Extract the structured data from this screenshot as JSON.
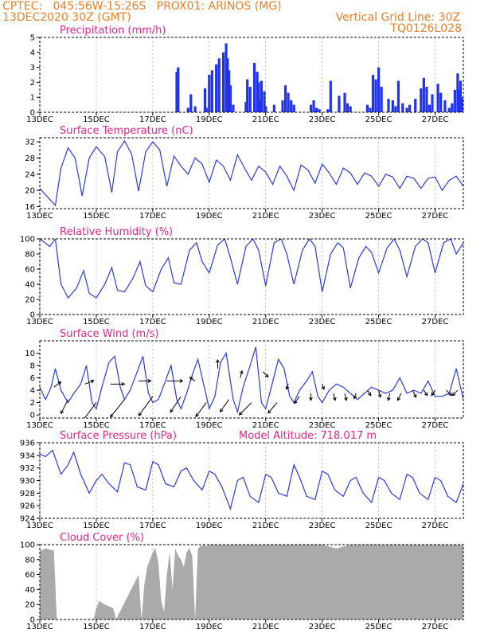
{
  "header": {
    "source": "CPTEC:",
    "location": "045:56W-15:26S",
    "station": "PROX01: ARINOS (MG)",
    "run": "13DEC2020 30Z (GMT)",
    "grid_note": "Vertical Grid Line: 30Z",
    "model_code": "TQ0126L028"
  },
  "x_axis": {
    "labels": [
      "13DEC",
      "15DEC",
      "17DEC",
      "19DEC",
      "21DEC",
      "23DEC",
      "25DEC",
      "27DEC"
    ],
    "start_day": 13,
    "end_day": 28.0
  },
  "colors": {
    "line": "#2a3cd6",
    "bar": "#2233ee",
    "cloud": "#aaaaaa",
    "title": "#e0288a",
    "header": "#e8812a"
  },
  "chart_data": [
    {
      "type": "bar",
      "title": "Precipitation (mm/h)",
      "ylim": [
        0,
        5
      ],
      "yticks": [
        0,
        1,
        2,
        3,
        4,
        5
      ],
      "x_units": "day of month (Dec 2020)",
      "x": [
        17.85,
        17.9,
        18.25,
        18.35,
        18.5,
        18.85,
        18.9,
        19.0,
        19.1,
        19.25,
        19.35,
        19.5,
        19.6,
        19.65,
        19.7,
        19.75,
        19.85,
        20.3,
        20.35,
        20.45,
        20.6,
        20.7,
        20.75,
        20.8,
        20.85,
        20.95,
        21.0,
        21.3,
        21.6,
        21.7,
        21.8,
        21.9,
        22.0,
        22.6,
        22.7,
        22.8,
        22.9,
        23.2,
        23.3,
        23.6,
        23.8,
        23.9,
        24.0,
        24.6,
        24.7,
        24.8,
        24.9,
        25.0,
        25.1,
        25.35,
        25.5,
        25.6,
        25.7,
        25.85,
        26.0,
        26.1,
        26.3,
        26.5,
        26.6,
        26.7,
        26.8,
        26.9,
        27.1,
        27.2,
        27.35,
        27.5,
        27.6,
        27.7,
        27.8,
        27.85,
        27.9,
        27.95
      ],
      "values": [
        2.7,
        3.0,
        0.3,
        1.2,
        0.4,
        1.6,
        0.3,
        2.5,
        2.8,
        3.2,
        3.6,
        4.0,
        4.6,
        3.6,
        2.8,
        1.8,
        0.5,
        0.7,
        2.2,
        1.7,
        3.3,
        2.7,
        2.0,
        0.8,
        2.1,
        1.4,
        0.4,
        0.5,
        0.8,
        1.8,
        1.3,
        0.8,
        0.5,
        0.5,
        0.8,
        0.3,
        0.2,
        0.2,
        2.1,
        1.1,
        1.3,
        0.6,
        0.4,
        0.5,
        0.3,
        2.5,
        2.2,
        3.0,
        1.7,
        0.9,
        0.8,
        0.4,
        2.1,
        0.6,
        0.3,
        0.5,
        0.9,
        1.6,
        2.3,
        1.7,
        0.5,
        1.2,
        1.9,
        1.3,
        0.8,
        0.3,
        0.6,
        1.5,
        2.6,
        1.5,
        2.1,
        1.0
      ]
    },
    {
      "type": "line",
      "title": "Surface Temperature (nC)",
      "ylim": [
        15.5,
        33
      ],
      "yticks": [
        16,
        20,
        24,
        28,
        32
      ],
      "x": [
        13.0,
        13.3,
        13.55,
        13.75,
        14.0,
        14.25,
        14.5,
        14.75,
        15.0,
        15.3,
        15.55,
        15.75,
        16.0,
        16.25,
        16.5,
        16.75,
        17.0,
        17.25,
        17.5,
        17.75,
        18.0,
        18.25,
        18.5,
        18.75,
        19.0,
        19.25,
        19.5,
        19.75,
        20.0,
        20.25,
        20.5,
        20.75,
        21.0,
        21.25,
        21.5,
        21.75,
        22.0,
        22.25,
        22.5,
        22.75,
        23.0,
        23.25,
        23.5,
        23.75,
        24.0,
        24.25,
        24.5,
        24.75,
        25.0,
        25.25,
        25.5,
        25.75,
        26.0,
        26.25,
        26.5,
        26.75,
        27.0,
        27.25,
        27.5,
        27.75,
        28.0
      ],
      "values": [
        20.5,
        18.2,
        16.3,
        25.5,
        30.5,
        28.0,
        18.6,
        28.0,
        30.8,
        28.3,
        19.5,
        29.5,
        32.2,
        29.0,
        19.8,
        29.5,
        32.0,
        30.0,
        21.0,
        28.5,
        26.0,
        24.0,
        28.0,
        26.5,
        22.0,
        27.5,
        26.0,
        22.5,
        28.8,
        25.5,
        22.5,
        26.0,
        24.5,
        21.5,
        26.0,
        23.5,
        20.0,
        26.3,
        25.0,
        21.8,
        26.5,
        24.3,
        21.5,
        25.5,
        24.3,
        21.5,
        24.3,
        23.5,
        21.0,
        24.0,
        23.3,
        20.5,
        23.5,
        23.0,
        20.5,
        23.0,
        23.3,
        20.0,
        22.5,
        23.5,
        21.0
      ]
    },
    {
      "type": "line",
      "title": "Relative Humidity (%)",
      "ylim": [
        0,
        100
      ],
      "yticks": [
        0,
        20,
        40,
        60,
        80,
        100
      ],
      "x": [
        13.0,
        13.35,
        13.55,
        13.75,
        14.0,
        14.3,
        14.55,
        14.75,
        15.0,
        15.3,
        15.55,
        15.75,
        16.0,
        16.3,
        16.55,
        16.75,
        17.0,
        17.3,
        17.55,
        17.75,
        18.0,
        18.3,
        18.55,
        18.75,
        19.0,
        19.3,
        19.55,
        19.75,
        20.0,
        20.3,
        20.55,
        20.75,
        21.0,
        21.3,
        21.55,
        21.75,
        22.0,
        22.3,
        22.55,
        22.75,
        23.0,
        23.3,
        23.55,
        23.75,
        24.0,
        24.3,
        24.55,
        24.75,
        25.0,
        25.3,
        25.55,
        25.75,
        26.0,
        26.3,
        26.55,
        26.75,
        27.0,
        27.3,
        27.55,
        27.75,
        28.0
      ],
      "values": [
        100,
        90,
        100,
        40,
        22,
        35,
        58,
        28,
        22,
        40,
        62,
        32,
        30,
        48,
        70,
        38,
        30,
        60,
        75,
        42,
        40,
        85,
        95,
        70,
        55,
        92,
        100,
        75,
        40,
        90,
        100,
        85,
        38,
        95,
        100,
        80,
        40,
        85,
        100,
        90,
        30,
        80,
        95,
        88,
        35,
        75,
        90,
        82,
        55,
        88,
        100,
        85,
        50,
        90,
        100,
        95,
        55,
        95,
        100,
        80,
        95
      ]
    },
    {
      "type": "line",
      "title": "Surface Wind (m/s)",
      "ylim": [
        -0.5,
        12
      ],
      "yticks": [
        0,
        2,
        4,
        6,
        8,
        10
      ],
      "x": [
        13.0,
        13.2,
        13.4,
        13.55,
        13.75,
        14.0,
        14.2,
        14.45,
        14.65,
        14.85,
        15.0,
        15.2,
        15.45,
        15.65,
        15.85,
        16.0,
        16.2,
        16.45,
        16.65,
        16.85,
        17.0,
        17.2,
        17.45,
        17.65,
        17.85,
        18.0,
        18.2,
        18.4,
        18.6,
        18.85,
        19.0,
        19.2,
        19.4,
        19.6,
        19.85,
        20.0,
        20.2,
        20.45,
        20.65,
        20.85,
        21.0,
        21.2,
        21.45,
        21.65,
        21.85,
        22.0,
        22.2,
        22.45,
        22.65,
        22.85,
        23.0,
        23.25,
        23.5,
        23.75,
        24.0,
        24.25,
        24.5,
        24.75,
        25.0,
        25.25,
        25.5,
        25.75,
        26.0,
        26.25,
        26.5,
        26.75,
        27.0,
        27.25,
        27.5,
        27.75,
        28.0
      ],
      "values": [
        4.5,
        2.5,
        4.5,
        7.5,
        4.0,
        2.0,
        3.5,
        5.0,
        8.0,
        2.0,
        1.0,
        4.5,
        8.5,
        9.5,
        4.5,
        2.5,
        4.0,
        7.0,
        9.5,
        3.5,
        2.0,
        2.5,
        5.5,
        8.0,
        2.5,
        1.0,
        3.5,
        6.5,
        9.0,
        4.0,
        1.0,
        3.0,
        8.5,
        10.0,
        2.5,
        0.5,
        4.5,
        8.0,
        11.0,
        2.0,
        1.0,
        4.5,
        9.0,
        7.5,
        3.0,
        2.0,
        4.0,
        5.5,
        7.0,
        3.0,
        2.0,
        4.0,
        5.0,
        4.5,
        3.5,
        2.5,
        3.5,
        4.5,
        4.0,
        3.5,
        4.0,
        6.0,
        3.5,
        4.0,
        3.5,
        5.5,
        3.0,
        3.0,
        3.5,
        7.5,
        2.5
      ],
      "vectors": {
        "x": [
          13.5,
          14.0,
          14.6,
          15.0,
          15.5,
          16.0,
          16.5,
          17.0,
          17.5,
          18.0,
          18.5,
          18.9,
          19.3,
          19.7,
          20.1,
          20.5,
          20.9,
          21.4,
          21.8,
          22.2,
          22.6,
          23.0,
          23.4,
          23.8,
          24.2,
          24.6,
          25.0,
          25.4,
          25.8,
          26.2,
          26.6,
          27.0,
          27.4,
          27.8
        ],
        "y": [
          4.5,
          2.5,
          5.0,
          2.0,
          5.0,
          2.5,
          5.5,
          3.0,
          5.5,
          3.0,
          5.5,
          2.0,
          7.5,
          2.5,
          6.0,
          2.0,
          7.0,
          2.0,
          5.0,
          3.0,
          3.5,
          5.0,
          3.5,
          3.5,
          3.5,
          4.0,
          4.0,
          3.5,
          3.5,
          4.0,
          4.0,
          4.0,
          4.0,
          4.0
        ],
        "u": [
          0.4,
          -0.4,
          0.5,
          -0.9,
          0.8,
          -0.8,
          0.7,
          -0.8,
          0.9,
          -0.6,
          -0.3,
          -0.6,
          0.0,
          -0.5,
          0.1,
          -0.7,
          0.3,
          -0.5,
          -0.1,
          -0.3,
          0.0,
          0.1,
          0.1,
          0.1,
          -0.1,
          0.2,
          0.1,
          -0.1,
          -0.2,
          0.2,
          0.2,
          -0.2,
          0.3,
          -0.3
        ],
        "v": [
          0.3,
          -0.8,
          0.2,
          -1.2,
          0.0,
          -1.0,
          0.0,
          -1.1,
          0.0,
          -0.9,
          0.2,
          -0.8,
          0.5,
          -0.7,
          0.4,
          -0.7,
          -0.3,
          -0.6,
          -0.3,
          -0.4,
          -0.4,
          -0.3,
          -0.4,
          -0.4,
          -0.3,
          -0.3,
          -0.4,
          -0.4,
          -0.4,
          -0.4,
          -0.3,
          -0.3,
          -0.3,
          -0.3
        ]
      }
    },
    {
      "type": "line",
      "title": "Surface Pressure (hPa)",
      "note": "Model Altitude: 718.017 m",
      "ylim": [
        924,
        936
      ],
      "yticks": [
        924,
        926,
        928,
        930,
        932,
        934,
        936
      ],
      "x": [
        13.0,
        13.2,
        13.45,
        13.75,
        14.0,
        14.2,
        14.45,
        14.75,
        15.0,
        15.2,
        15.45,
        15.75,
        16.0,
        16.2,
        16.45,
        16.75,
        17.0,
        17.2,
        17.45,
        17.75,
        18.0,
        18.2,
        18.45,
        18.75,
        19.0,
        19.2,
        19.45,
        19.75,
        20.0,
        20.2,
        20.45,
        20.75,
        21.0,
        21.2,
        21.45,
        21.75,
        22.0,
        22.2,
        22.45,
        22.75,
        23.0,
        23.2,
        23.45,
        23.75,
        24.0,
        24.2,
        24.45,
        24.75,
        25.0,
        25.2,
        25.45,
        25.75,
        26.0,
        26.2,
        26.45,
        26.75,
        27.0,
        27.2,
        27.45,
        27.75,
        28.0
      ],
      "values": [
        934.2,
        933.8,
        934.8,
        931.0,
        932.5,
        934.5,
        931.0,
        928.0,
        930.0,
        931.0,
        929.5,
        928.2,
        932.8,
        932.5,
        929.0,
        928.5,
        933.0,
        932.5,
        929.5,
        929.0,
        931.5,
        932.0,
        930.0,
        928.5,
        931.5,
        931.0,
        929.0,
        925.5,
        930.0,
        930.5,
        927.5,
        926.5,
        931.0,
        930.5,
        928.0,
        927.5,
        932.5,
        930.5,
        927.5,
        927.0,
        931.5,
        931.0,
        928.5,
        927.5,
        930.0,
        930.5,
        928.0,
        926.5,
        930.5,
        930.0,
        928.0,
        927.0,
        931.0,
        930.5,
        928.0,
        927.0,
        930.5,
        930.0,
        927.5,
        926.5,
        929.5
      ]
    },
    {
      "type": "area",
      "title": "Cloud Cover (%)",
      "ylim": [
        0,
        100
      ],
      "yticks": [
        0,
        20,
        40,
        60,
        80,
        100
      ],
      "x": [
        13.0,
        13.05,
        13.2,
        13.5,
        13.6,
        14.9,
        15.0,
        15.1,
        15.3,
        15.6,
        15.7,
        16.5,
        16.6,
        16.7,
        16.8,
        17.0,
        17.1,
        17.2,
        17.3,
        17.4,
        17.5,
        17.6,
        17.7,
        17.8,
        17.9,
        18.0,
        18.1,
        18.2,
        18.3,
        18.4,
        18.5,
        18.6,
        18.7,
        18.8,
        18.9,
        19.0,
        19.5,
        20.0,
        20.5,
        21.0,
        21.5,
        22.0,
        22.5,
        23.0,
        23.5,
        24.0,
        24.5,
        25.0,
        25.5,
        26.0,
        26.5,
        27.0,
        27.5,
        28.0
      ],
      "values": [
        95,
        92,
        95,
        92,
        0,
        0,
        15,
        25,
        20,
        15,
        0,
        60,
        0,
        45,
        70,
        90,
        95,
        75,
        25,
        10,
        60,
        90,
        40,
        95,
        85,
        80,
        70,
        90,
        95,
        85,
        0,
        95,
        98,
        100,
        98,
        100,
        100,
        100,
        100,
        100,
        100,
        100,
        100,
        100,
        95,
        100,
        100,
        100,
        100,
        100,
        100,
        100,
        100,
        100
      ]
    }
  ]
}
